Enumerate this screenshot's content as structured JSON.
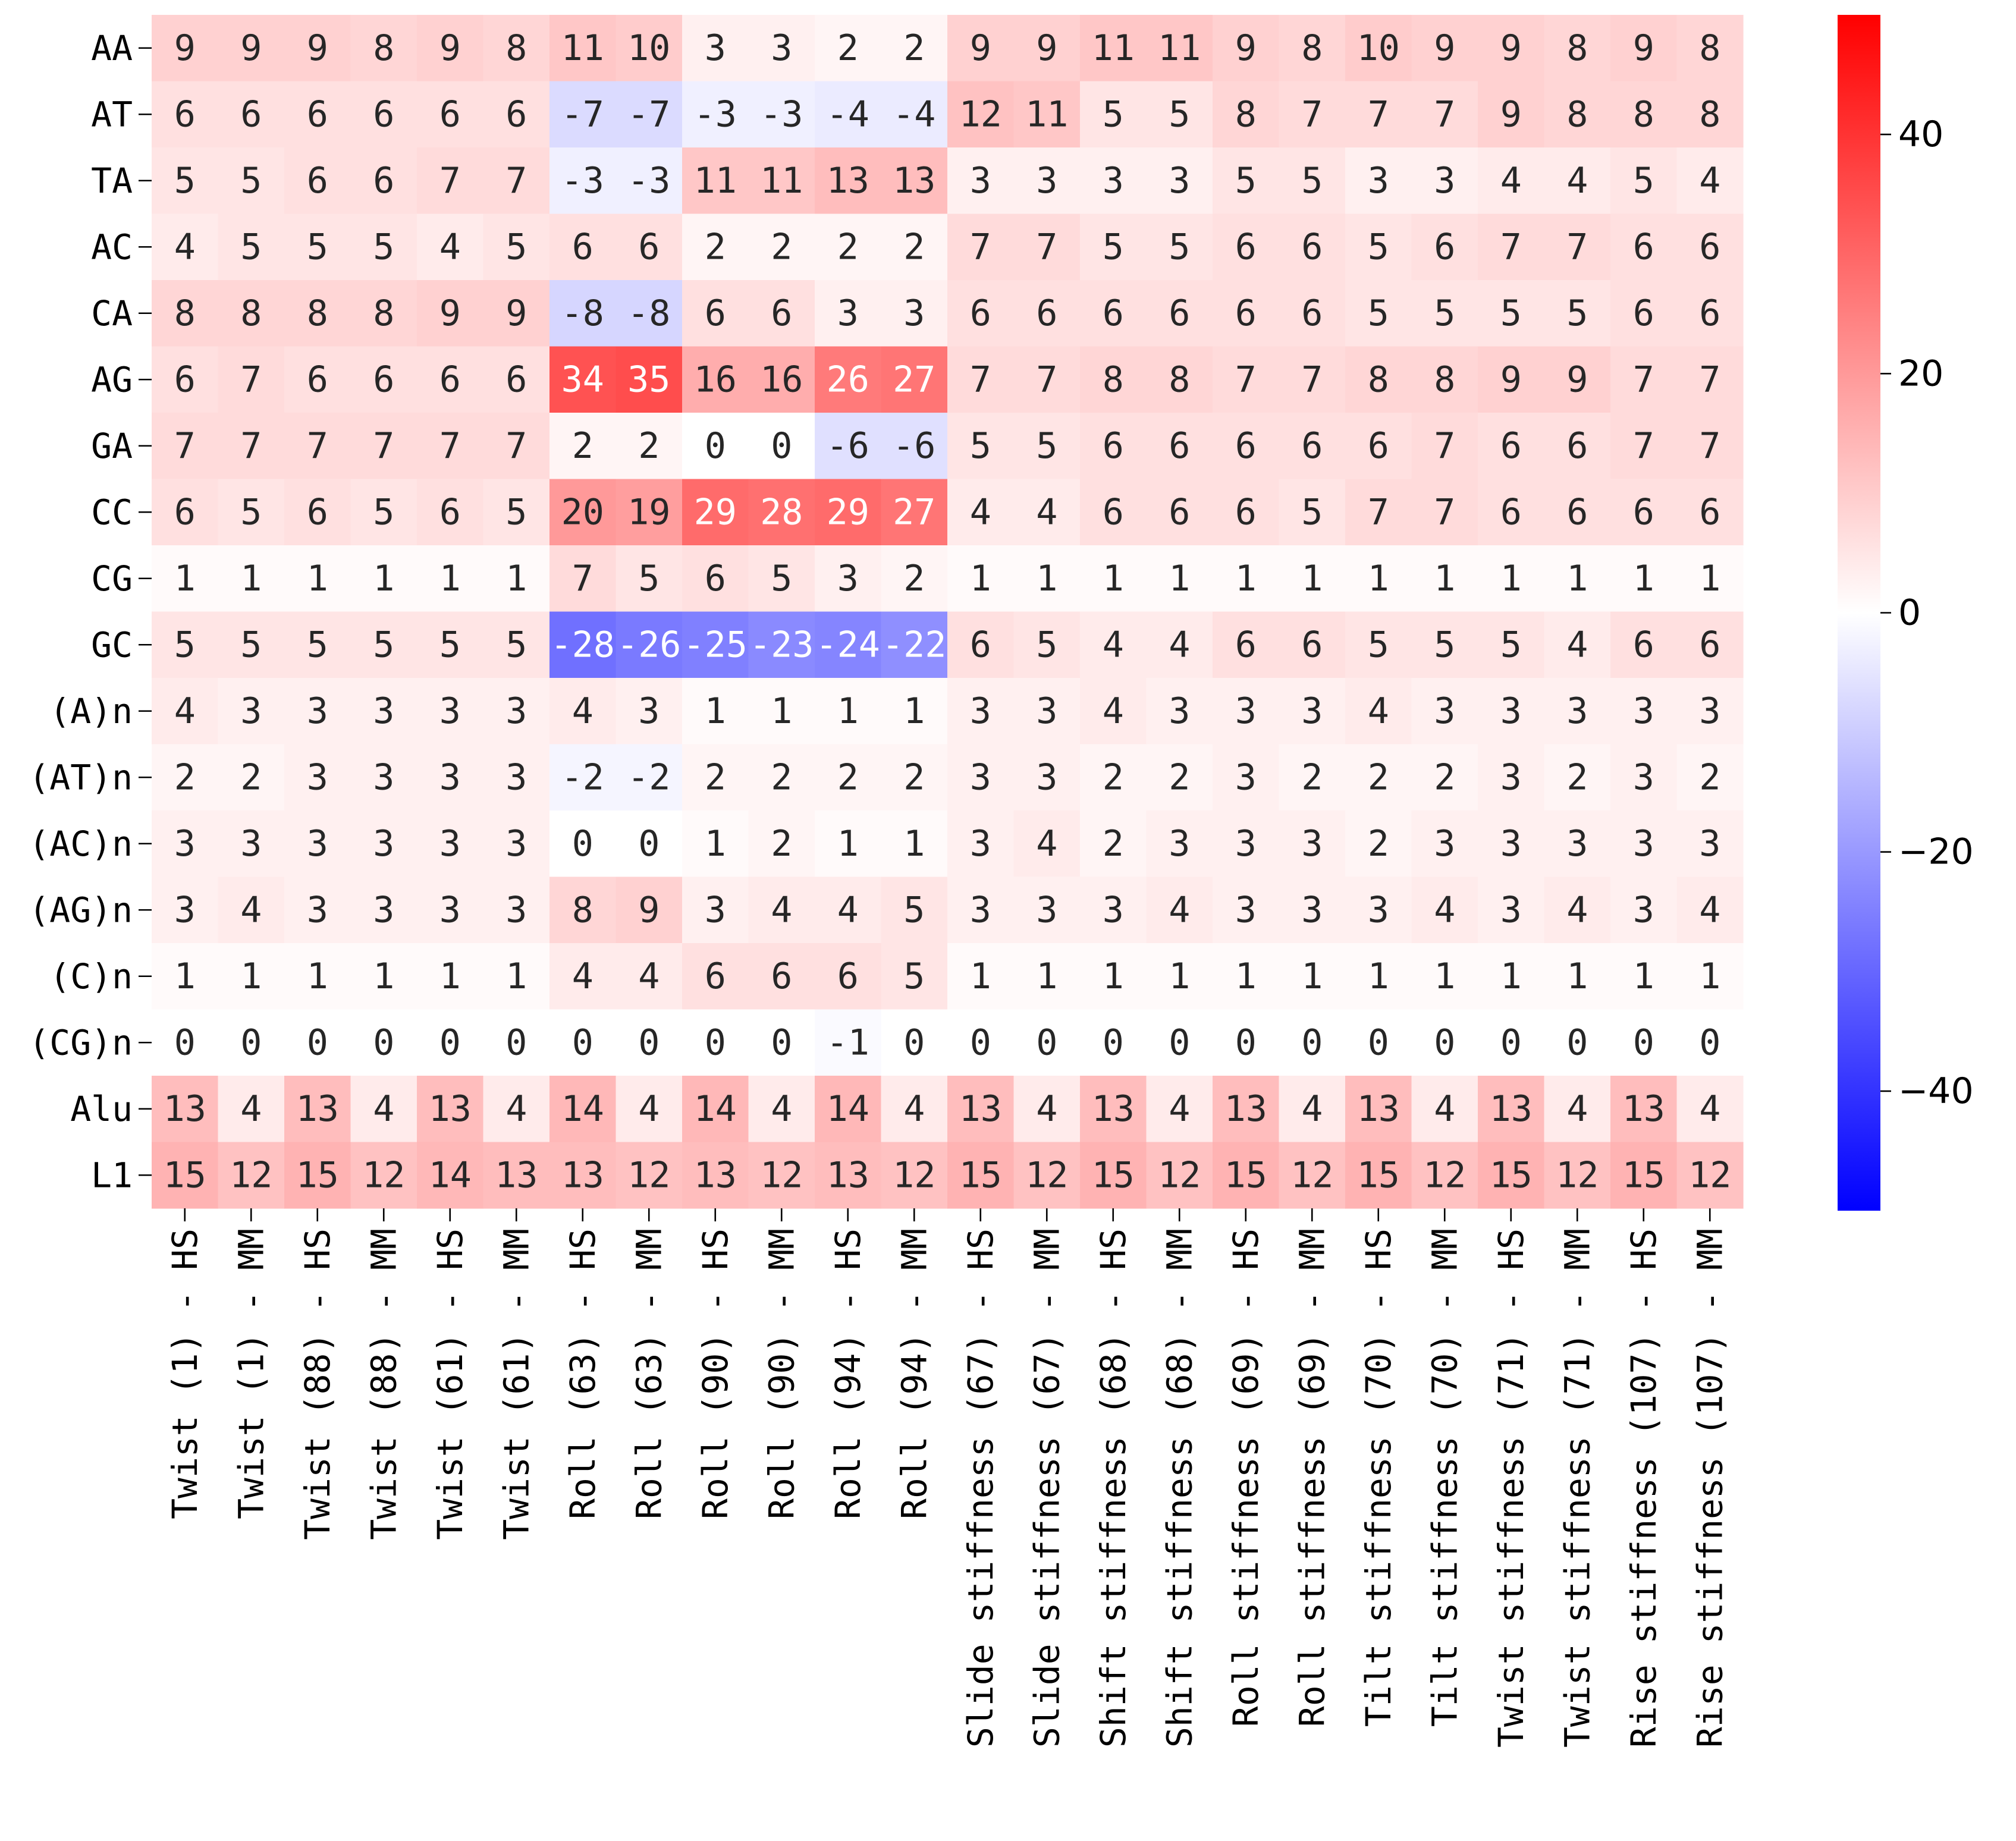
{
  "chart_data": {
    "type": "heatmap",
    "title": "",
    "xlabel": "",
    "ylabel": "",
    "rows": [
      "AA",
      "AT",
      "TA",
      "AC",
      "CA",
      "AG",
      "GA",
      "CC",
      "CG",
      "GC",
      "(A)n",
      "(AT)n",
      "(AC)n",
      "(AG)n",
      "(C)n",
      "(CG)n",
      "Alu",
      "L1"
    ],
    "columns": [
      "Twist (1) - HS",
      "Twist (1) - MM",
      "Twist (88) - HS",
      "Twist (88) - MM",
      "Twist (61) - HS",
      "Twist (61) - MM",
      "Roll (63) - HS",
      "Roll (63) - MM",
      "Roll (90) - HS",
      "Roll (90) - MM",
      "Roll (94) - HS",
      "Roll (94) - MM",
      "Slide stiffness (67) - HS",
      "Slide stiffness (67) - MM",
      "Shift stiffness (68) - HS",
      "Shift stiffness (68) - MM",
      "Roll stiffness (69) - HS",
      "Roll stiffness (69) - MM",
      "Tilt stiffness (70) - HS",
      "Tilt stiffness (70) - MM",
      "Twist stiffness (71) - HS",
      "Twist stiffness (71) - MM",
      "Rise stiffness (107) - HS",
      "Rise stiffness (107) - MM"
    ],
    "values": [
      [
        9,
        9,
        9,
        8,
        9,
        8,
        11,
        10,
        3,
        3,
        2,
        2,
        9,
        9,
        11,
        11,
        9,
        8,
        10,
        9,
        9,
        8,
        9,
        8
      ],
      [
        6,
        6,
        6,
        6,
        6,
        6,
        -7,
        -7,
        -3,
        -3,
        -4,
        -4,
        12,
        11,
        5,
        5,
        8,
        7,
        7,
        7,
        9,
        8,
        8,
        8
      ],
      [
        5,
        5,
        6,
        6,
        7,
        7,
        -3,
        -3,
        11,
        11,
        13,
        13,
        3,
        3,
        3,
        3,
        5,
        5,
        3,
        3,
        4,
        4,
        5,
        4
      ],
      [
        4,
        5,
        5,
        5,
        4,
        5,
        6,
        6,
        2,
        2,
        2,
        2,
        7,
        7,
        5,
        5,
        6,
        6,
        5,
        6,
        7,
        7,
        6,
        6
      ],
      [
        8,
        8,
        8,
        8,
        9,
        9,
        -8,
        -8,
        6,
        6,
        3,
        3,
        6,
        6,
        6,
        6,
        6,
        6,
        5,
        5,
        5,
        5,
        6,
        6
      ],
      [
        6,
        7,
        6,
        6,
        6,
        6,
        34,
        35,
        16,
        16,
        26,
        27,
        7,
        7,
        8,
        8,
        7,
        7,
        8,
        8,
        9,
        9,
        7,
        7
      ],
      [
        7,
        7,
        7,
        7,
        7,
        7,
        2,
        2,
        0,
        0,
        -6,
        -6,
        5,
        5,
        6,
        6,
        6,
        6,
        6,
        7,
        6,
        6,
        7,
        7
      ],
      [
        6,
        5,
        6,
        5,
        6,
        5,
        20,
        19,
        29,
        28,
        29,
        27,
        4,
        4,
        6,
        6,
        6,
        5,
        7,
        7,
        6,
        6,
        6,
        6
      ],
      [
        1,
        1,
        1,
        1,
        1,
        1,
        7,
        5,
        6,
        5,
        3,
        2,
        1,
        1,
        1,
        1,
        1,
        1,
        1,
        1,
        1,
        1,
        1,
        1
      ],
      [
        5,
        5,
        5,
        5,
        5,
        5,
        -28,
        -26,
        -25,
        -23,
        -24,
        -22,
        6,
        5,
        4,
        4,
        6,
        6,
        5,
        5,
        5,
        4,
        6,
        6
      ],
      [
        4,
        3,
        3,
        3,
        3,
        3,
        4,
        3,
        1,
        1,
        1,
        1,
        3,
        3,
        4,
        3,
        3,
        3,
        4,
        3,
        3,
        3,
        3,
        3
      ],
      [
        2,
        2,
        3,
        3,
        3,
        3,
        -2,
        -2,
        2,
        2,
        2,
        2,
        3,
        3,
        2,
        2,
        3,
        2,
        2,
        2,
        3,
        2,
        3,
        2
      ],
      [
        3,
        3,
        3,
        3,
        3,
        3,
        0,
        0,
        1,
        2,
        1,
        1,
        3,
        4,
        2,
        3,
        3,
        3,
        2,
        3,
        3,
        3,
        3,
        3
      ],
      [
        3,
        4,
        3,
        3,
        3,
        3,
        8,
        9,
        3,
        4,
        4,
        5,
        3,
        3,
        3,
        4,
        3,
        3,
        3,
        4,
        3,
        4,
        3,
        4
      ],
      [
        1,
        1,
        1,
        1,
        1,
        1,
        4,
        4,
        6,
        6,
        6,
        5,
        1,
        1,
        1,
        1,
        1,
        1,
        1,
        1,
        1,
        1,
        1,
        1
      ],
      [
        0,
        0,
        0,
        0,
        0,
        0,
        0,
        0,
        0,
        0,
        -1,
        0,
        0,
        0,
        0,
        0,
        0,
        0,
        0,
        0,
        0,
        0,
        0,
        0
      ],
      [
        13,
        4,
        13,
        4,
        13,
        4,
        14,
        4,
        14,
        4,
        14,
        4,
        13,
        4,
        13,
        4,
        13,
        4,
        13,
        4,
        13,
        4,
        13,
        4
      ],
      [
        15,
        12,
        15,
        12,
        14,
        13,
        13,
        12,
        13,
        12,
        13,
        12,
        15,
        12,
        15,
        12,
        15,
        12,
        15,
        12,
        15,
        12,
        15,
        12
      ]
    ],
    "colorbar": {
      "vmin": -50,
      "vmax": 50,
      "ticks": [
        -40,
        -20,
        0,
        20,
        40
      ],
      "tick_labels": [
        "−40",
        "−20",
        "0",
        "20",
        "40"
      ],
      "colormap": "bwr",
      "colors": {
        "low": "#0000ff",
        "mid": "#ffffff",
        "high": "#ff0000"
      }
    },
    "annotation_colors": {
      "dark": "#262626",
      "light": "#ffffff"
    }
  }
}
